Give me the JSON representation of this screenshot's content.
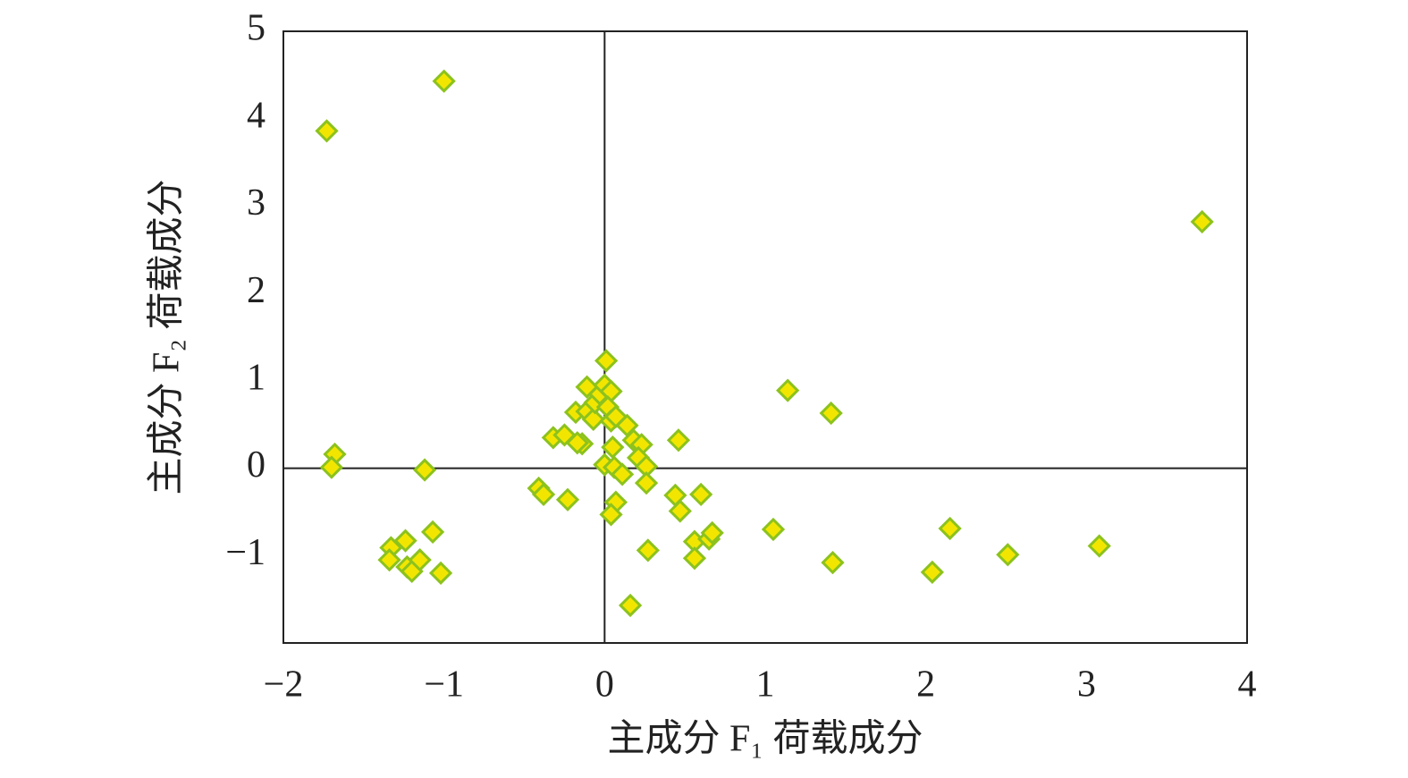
{
  "chart_data": {
    "type": "scatter",
    "x_label": "主成分 F₁ 荷载成分",
    "y_label": "主成分 F₂ 荷载成分",
    "x": [
      -1.0,
      -1.73,
      3.72,
      -1.68,
      -1.7,
      -1.12,
      -1.07,
      -1.33,
      -1.24,
      -1.34,
      -1.23,
      -1.2,
      -1.15,
      -1.02,
      -0.41,
      -0.38,
      -0.23,
      -0.32,
      -0.25,
      -0.14,
      -0.17,
      -0.18,
      -0.11,
      -0.11,
      -0.07,
      -0.06,
      -0.03,
      0.0,
      0.01,
      0.04,
      0.02,
      0.04,
      0.07,
      0.14,
      0.18,
      0.23,
      0.21,
      0.26,
      0.26,
      0.0,
      0.06,
      0.11,
      0.07,
      0.04,
      0.05,
      0.16,
      0.27,
      0.46,
      0.44,
      0.47,
      0.6,
      0.56,
      0.56,
      0.65,
      0.67,
      1.05,
      1.14,
      1.41,
      1.42,
      2.04,
      2.15,
      2.51,
      3.08
    ],
    "values": [
      4.43,
      3.86,
      2.82,
      0.16,
      0.01,
      -0.02,
      -0.73,
      -0.91,
      -0.83,
      -1.05,
      -1.13,
      -1.18,
      -1.05,
      -1.2,
      -0.23,
      -0.3,
      -0.36,
      0.35,
      0.38,
      0.28,
      0.29,
      0.64,
      0.93,
      0.65,
      0.56,
      0.75,
      0.85,
      0.95,
      1.23,
      0.88,
      0.7,
      0.54,
      0.59,
      0.49,
      0.32,
      0.27,
      0.12,
      0.02,
      -0.17,
      0.04,
      0.01,
      -0.07,
      -0.39,
      -0.53,
      0.24,
      -1.57,
      -0.94,
      0.32,
      -0.31,
      -0.49,
      -0.3,
      -0.84,
      -1.03,
      -0.81,
      -0.74,
      -0.7,
      0.89,
      0.63,
      -1.08,
      -1.19,
      -0.69,
      -0.99,
      -0.89
    ],
    "color": "#f2e600",
    "edge_color": "#8cc21e",
    "xlim": [
      -2,
      4
    ],
    "xticks": [
      {
        "value": -2,
        "label": "−2"
      },
      {
        "value": -1,
        "label": "−1"
      },
      0,
      1,
      2,
      3,
      4
    ],
    "ylim": [
      -2,
      5
    ],
    "yticks": [
      {
        "value": -1,
        "label": "−1"
      },
      0,
      1,
      2,
      3,
      4,
      5
    ],
    "zero_lines": true,
    "grid": false
  }
}
